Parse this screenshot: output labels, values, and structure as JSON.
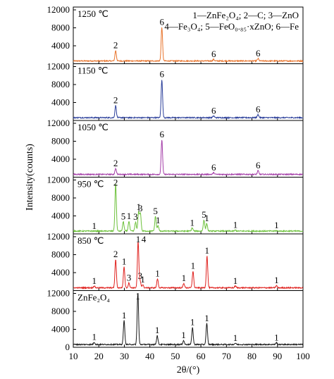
{
  "chart_data": {
    "type": "line",
    "xlabel": "2θ/(°)",
    "ylabel": "Intensity(counts)",
    "xlim": [
      10,
      100
    ],
    "x_ticks": [
      "10",
      "20",
      "30",
      "40",
      "50",
      "60",
      "70",
      "80",
      "90",
      "100"
    ],
    "ylim": [
      0,
      12000
    ],
    "y_ticks": [
      "0",
      "4000",
      "8000",
      "12000"
    ],
    "legend": {
      "placement": "top-right",
      "line1": "1—ZnFe₂O₄; 2—C; 3—ZnO",
      "line2": "4—Fe₃O₄; 5—FeO₀.₈₅·xZnO; 6—Fe"
    },
    "panels": [
      {
        "label": "1250 ℃",
        "color": "#e8742c",
        "peaks": [
          {
            "x": 26.6,
            "y": 2800,
            "label": "2"
          },
          {
            "x": 44.7,
            "y": 8000,
            "label": "6"
          },
          {
            "x": 65.0,
            "y": 850,
            "label": "6"
          },
          {
            "x": 82.4,
            "y": 1000,
            "label": "6"
          }
        ]
      },
      {
        "label": "1150 ℃",
        "color": "#2a3e9a",
        "peaks": [
          {
            "x": 26.6,
            "y": 3200,
            "label": "2"
          },
          {
            "x": 44.7,
            "y": 9000,
            "label": "6"
          },
          {
            "x": 65.0,
            "y": 900,
            "label": "6"
          },
          {
            "x": 82.4,
            "y": 1200,
            "label": "6"
          }
        ]
      },
      {
        "label": "1050 ℃",
        "color": "#a43ea8",
        "peaks": [
          {
            "x": 26.6,
            "y": 1800,
            "label": "2"
          },
          {
            "x": 44.7,
            "y": 8200,
            "label": "6"
          },
          {
            "x": 65.0,
            "y": 900,
            "label": "6"
          },
          {
            "x": 82.4,
            "y": 1300,
            "label": "6"
          }
        ]
      },
      {
        "label": "950 ℃",
        "color": "#6cc13a",
        "peaks": [
          {
            "x": 18.2,
            "y": 500,
            "label": "1"
          },
          {
            "x": 26.6,
            "y": 11000,
            "label": "2"
          },
          {
            "x": 29.6,
            "y": 2600,
            "label": "5"
          },
          {
            "x": 31.8,
            "y": 2700,
            "label": "1"
          },
          {
            "x": 34.4,
            "y": 2500,
            "label": "3"
          },
          {
            "x": 35.6,
            "y": 4700,
            "label": "1"
          },
          {
            "x": 36.3,
            "y": 4400,
            "label": "3"
          },
          {
            "x": 42.2,
            "y": 3800,
            "label": "5"
          },
          {
            "x": 43.2,
            "y": 1700,
            "label": "1"
          },
          {
            "x": 56.6,
            "y": 1200,
            "label": "1"
          },
          {
            "x": 61.2,
            "y": 3000,
            "label": "5"
          },
          {
            "x": 62.3,
            "y": 2200,
            "label": "1"
          },
          {
            "x": 73.5,
            "y": 700,
            "label": "1"
          },
          {
            "x": 89.6,
            "y": 600,
            "label": "1"
          }
        ]
      },
      {
        "label": "850 ℃",
        "color": "#e0221f",
        "peaks": [
          {
            "x": 18.2,
            "y": 900,
            "label": "1"
          },
          {
            "x": 26.6,
            "y": 6800,
            "label": "2"
          },
          {
            "x": 29.9,
            "y": 5200,
            "label": "1"
          },
          {
            "x": 31.8,
            "y": 1600,
            "label": "3"
          },
          {
            "x": 35.4,
            "y": 10800,
            "label": "1"
          },
          {
            "x": 36.2,
            "y": 2000,
            "label": "3"
          },
          {
            "x": 37.2,
            "y": 1200,
            "label": "1"
          },
          {
            "x": 43.0,
            "y": 2500,
            "label": "1"
          },
          {
            "x": 53.3,
            "y": 1500,
            "label": "1"
          },
          {
            "x": 56.9,
            "y": 4200,
            "label": "1"
          },
          {
            "x": 62.4,
            "y": 7600,
            "label": "1"
          },
          {
            "x": 73.5,
            "y": 900,
            "label": "1"
          },
          {
            "x": 89.6,
            "y": 1000,
            "label": "1"
          }
        ],
        "extra_labels": [
          {
            "x": 35.4,
            "label": "4"
          }
        ]
      },
      {
        "label": "ZnFe₂O₄",
        "color": "#1a1a1a",
        "peaks": [
          {
            "x": 18.2,
            "y": 1000,
            "label": "1"
          },
          {
            "x": 29.9,
            "y": 5800,
            "label": "1"
          },
          {
            "x": 35.3,
            "y": 12000,
            "label": "1"
          },
          {
            "x": 42.9,
            "y": 2500,
            "label": "1"
          },
          {
            "x": 53.2,
            "y": 1400,
            "label": "1"
          },
          {
            "x": 56.7,
            "y": 4300,
            "label": "1"
          },
          {
            "x": 62.3,
            "y": 5200,
            "label": "1"
          },
          {
            "x": 73.5,
            "y": 800,
            "label": "1"
          },
          {
            "x": 89.6,
            "y": 900,
            "label": "1"
          }
        ]
      }
    ]
  }
}
